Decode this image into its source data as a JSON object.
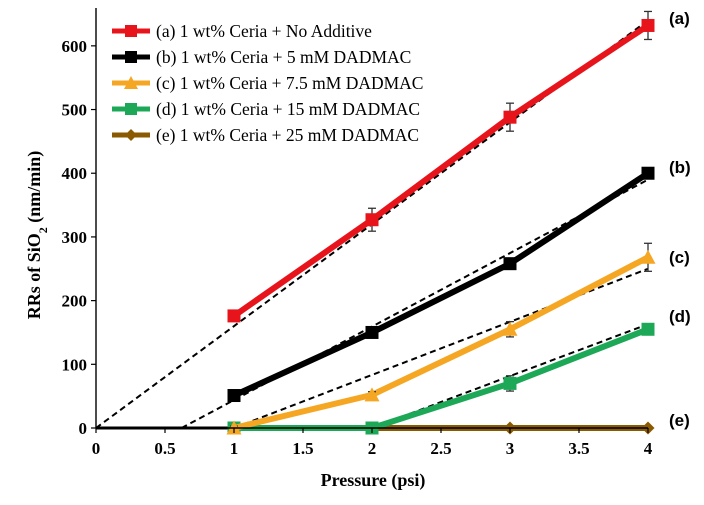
{
  "chart_data": {
    "type": "line",
    "xlabel": "Pressure (psi)",
    "ylabel_main": "RRs of SiO",
    "ylabel_sub": "2",
    "ylabel_tail": " (nm/min)",
    "xlim": [
      0,
      4
    ],
    "ylim": [
      0,
      650
    ],
    "x_ticks": [
      0,
      0.5,
      1,
      1.5,
      2,
      2.5,
      3,
      3.5,
      4
    ],
    "x_tick_labels": [
      "0",
      "0.5",
      "1",
      "1.5",
      "2",
      "2.5",
      "3",
      "3.5",
      "4"
    ],
    "y_ticks": [
      0,
      100,
      200,
      300,
      400,
      500,
      600
    ],
    "y_tick_labels": [
      "0",
      "100",
      "200",
      "300",
      "400",
      "500",
      "600"
    ],
    "grid": false,
    "legend_position": "top-left",
    "series": [
      {
        "name": "(a) 1 wt% Ceria + No Additive",
        "label": "(a)",
        "color": "#e8141b",
        "marker": "square",
        "x": [
          1,
          2,
          3,
          4
        ],
        "y": [
          176,
          327,
          488,
          632
        ],
        "yerr": [
          5,
          18,
          22,
          22
        ],
        "fit": [
          [
            0,
            0
          ],
          [
            4,
            640
          ]
        ]
      },
      {
        "name": "(b) 1 wt% Ceria + 5 mM DADMAC",
        "label": "(b)",
        "color": "#000000",
        "marker": "square",
        "x": [
          1,
          2,
          3,
          4
        ],
        "y": [
          51,
          150,
          258,
          400
        ],
        "yerr": [
          6,
          6,
          8,
          6
        ],
        "fit": [
          [
            0.62,
            0
          ],
          [
            4,
            390
          ]
        ]
      },
      {
        "name": "(c) 1 wt% Ceria + 7.5 mM DADMAC",
        "label": "(c)",
        "color": "#f5a623",
        "marker": "triangle",
        "x": [
          1,
          2,
          3,
          4
        ],
        "y": [
          0,
          52,
          155,
          268
        ],
        "yerr": [
          3,
          5,
          12,
          22
        ],
        "fit": [
          [
            1,
            0
          ],
          [
            4,
            250
          ]
        ]
      },
      {
        "name": "(d) 1 wt% Ceria + 15 mM DADMAC",
        "label": "(d)",
        "color": "#1da858",
        "marker": "square",
        "x": [
          1,
          2,
          3,
          4
        ],
        "y": [
          0,
          0,
          70,
          155
        ],
        "yerr": [
          0,
          0,
          12,
          6
        ],
        "fit": [
          [
            2,
            0
          ],
          [
            4,
            163
          ]
        ]
      },
      {
        "name": "(e) 1 wt% Ceria + 25 mM DADMAC",
        "label": "(e)",
        "color": "#8a5a00",
        "marker": "diamond",
        "x": [
          1,
          2,
          3,
          4
        ],
        "y": [
          0,
          0,
          0,
          0
        ],
        "yerr": [
          0,
          0,
          0,
          0
        ],
        "fit": null
      }
    ]
  }
}
